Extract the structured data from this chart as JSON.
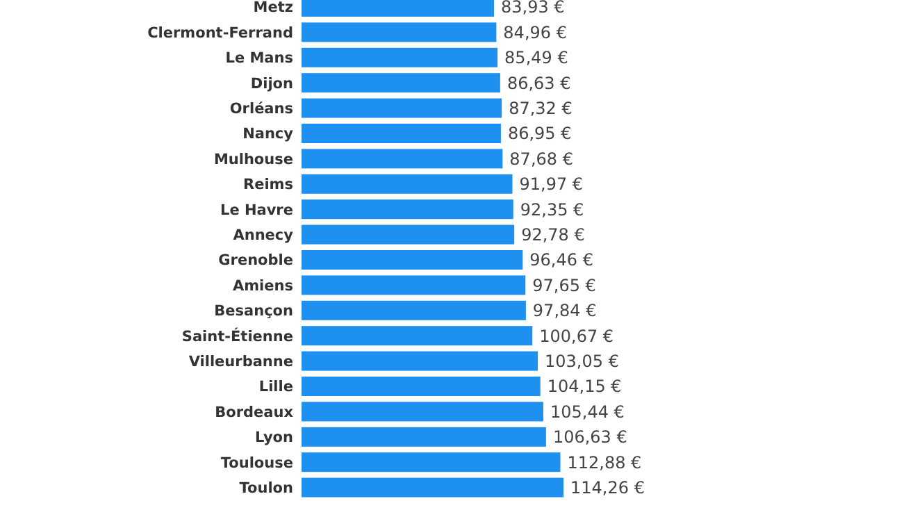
{
  "chart_data": {
    "type": "bar",
    "orientation": "horizontal",
    "color": "#1e90f0",
    "categories": [
      "Metz",
      "Clermont-Ferrand",
      "Le Mans",
      "Dijon",
      "Orléans",
      "Nancy",
      "Mulhouse",
      "Reims",
      "Le Havre",
      "Annecy",
      "Grenoble",
      "Amiens",
      "Besançon",
      "Saint-Étienne",
      "Villeurbanne",
      "Lille",
      "Bordeaux",
      "Lyon",
      "Toulouse",
      "Toulon"
    ],
    "values": [
      83.93,
      84.96,
      85.49,
      86.63,
      87.32,
      86.95,
      87.68,
      91.97,
      92.35,
      92.78,
      96.46,
      97.65,
      97.84,
      100.67,
      103.05,
      104.15,
      105.44,
      106.63,
      112.88,
      114.26
    ],
    "value_labels": [
      "83,93 €",
      "84,96 €",
      "85,49 €",
      "86,63 €",
      "87,32 €",
      "86,95 €",
      "87,68 €",
      "91,97 €",
      "92,35 €",
      "92,78 €",
      "96,46 €",
      "97,65 €",
      "97,84 €",
      "100,67 €",
      "103,05 €",
      "104,15 €",
      "105,44 €",
      "106,63 €",
      "112,88 €",
      "114,26 €"
    ]
  }
}
